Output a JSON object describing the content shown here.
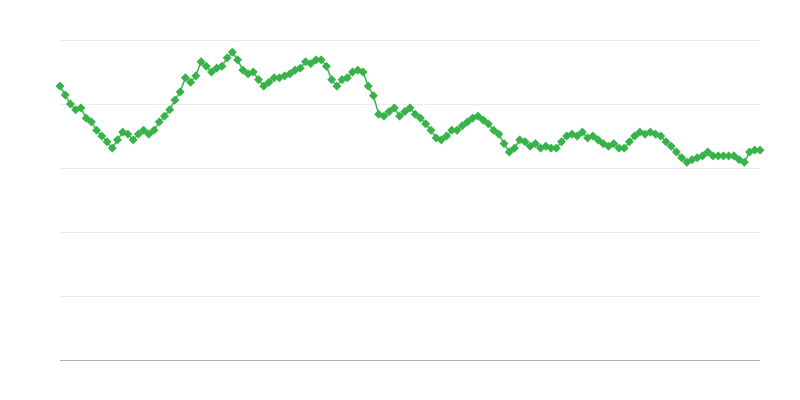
{
  "chart_data": {
    "type": "line",
    "title": "",
    "xlabel": "",
    "ylabel": "",
    "ylim": [
      0,
      5
    ],
    "grid": true,
    "legend": "none",
    "marker": "diamond",
    "color": "#37b34a",
    "series": [
      {
        "values": [
          4.28,
          4.14,
          4.0,
          3.91,
          3.94,
          3.78,
          3.72,
          3.59,
          3.5,
          3.41,
          3.31,
          3.44,
          3.56,
          3.53,
          3.44,
          3.53,
          3.59,
          3.53,
          3.59,
          3.72,
          3.81,
          3.91,
          4.06,
          4.19,
          4.41,
          4.34,
          4.44,
          4.66,
          4.59,
          4.5,
          4.56,
          4.59,
          4.72,
          4.81,
          4.69,
          4.53,
          4.47,
          4.5,
          4.38,
          4.28,
          4.34,
          4.41,
          4.41,
          4.44,
          4.47,
          4.53,
          4.56,
          4.66,
          4.63,
          4.69,
          4.69,
          4.59,
          4.38,
          4.28,
          4.38,
          4.41,
          4.5,
          4.53,
          4.5,
          4.28,
          4.13,
          3.84,
          3.81,
          3.88,
          3.94,
          3.81,
          3.88,
          3.94,
          3.84,
          3.78,
          3.69,
          3.59,
          3.47,
          3.44,
          3.5,
          3.59,
          3.59,
          3.66,
          3.72,
          3.78,
          3.81,
          3.75,
          3.69,
          3.59,
          3.53,
          3.38,
          3.25,
          3.31,
          3.44,
          3.41,
          3.34,
          3.38,
          3.31,
          3.34,
          3.31,
          3.31,
          3.41,
          3.5,
          3.53,
          3.5,
          3.56,
          3.47,
          3.5,
          3.44,
          3.38,
          3.34,
          3.38,
          3.31,
          3.31,
          3.41,
          3.5,
          3.56,
          3.53,
          3.56,
          3.53,
          3.5,
          3.41,
          3.34,
          3.25,
          3.16,
          3.09,
          3.13,
          3.16,
          3.19,
          3.25,
          3.19,
          3.19,
          3.19,
          3.19,
          3.19,
          3.13,
          3.09,
          3.25,
          3.28,
          3.28
        ]
      }
    ]
  }
}
